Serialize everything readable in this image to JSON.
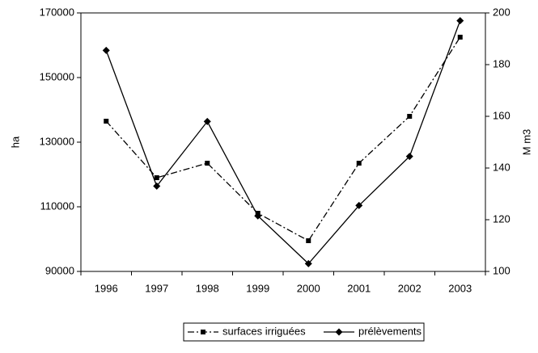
{
  "chart_data": {
    "type": "line",
    "categories": [
      "1996",
      "1997",
      "1998",
      "1999",
      "2000",
      "2001",
      "2002",
      "2003"
    ],
    "y_label": "ha",
    "y2_label": "M m3",
    "ylim": [
      90000,
      170000
    ],
    "yticks": [
      90000,
      110000,
      130000,
      150000,
      170000
    ],
    "y2lim": [
      100,
      200
    ],
    "y2ticks": [
      100,
      120,
      140,
      160,
      180,
      200
    ],
    "grid": false,
    "legend": "bottom",
    "series": [
      {
        "name": "surfaces irriguées",
        "color": "#000000",
        "dash": "dashdot",
        "marker": "square",
        "values": [
          136500,
          119000,
          123500,
          108000,
          99500,
          123500,
          138000,
          162500
        ]
      },
      {
        "name": "prélèvements",
        "color": "#000000",
        "dash": "solid",
        "marker": "diamond",
        "axis": "y2",
        "values": [
          185.5,
          133,
          158,
          121.5,
          103,
          125.5,
          144.5,
          197
        ]
      }
    ]
  }
}
